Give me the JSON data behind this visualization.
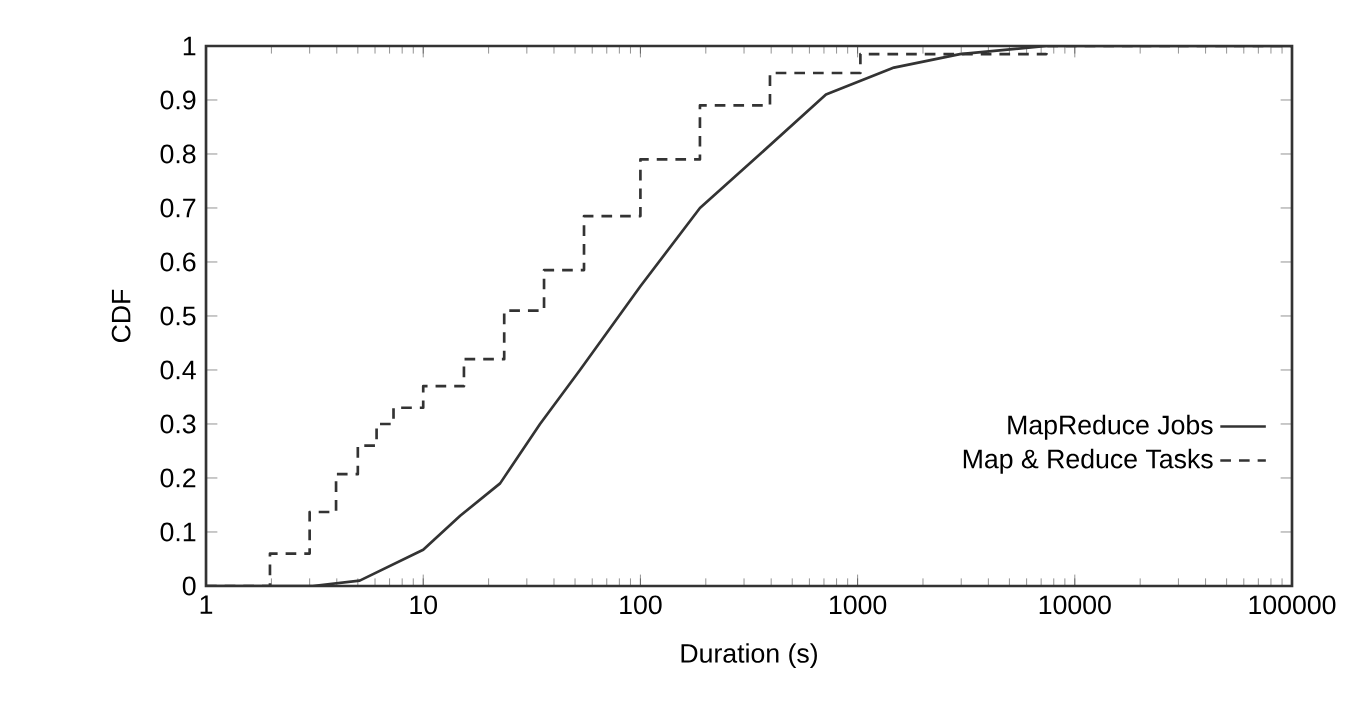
{
  "chart_data": {
    "type": "line",
    "xlabel": "Duration (s)",
    "ylabel": "CDF",
    "log": "x",
    "xlim": [
      1,
      100000
    ],
    "ylim": [
      0,
      1
    ],
    "xticks": [
      1,
      10,
      100,
      1000,
      10000,
      100000
    ],
    "yticks": [
      0,
      0.1,
      0.2,
      0.3,
      0.4,
      0.5,
      0.6,
      0.7,
      0.8,
      0.9,
      1
    ],
    "grid": false,
    "legend": "bottom right",
    "marker": "none",
    "series": [
      {
        "name": "MapReduce Jobs",
        "line_style": "solid",
        "color": "#333333",
        "x": [
          1,
          3.1,
          5.1,
          10,
          14.8,
          22.6,
          34.5,
          52.7,
          100,
          188,
          356,
          715,
          1470,
          2960,
          7400,
          100000
        ],
        "values": [
          0,
          0,
          0.01,
          0.067,
          0.13,
          0.19,
          0.3,
          0.4,
          0.555,
          0.7,
          0.8,
          0.91,
          0.96,
          0.985,
          1,
          1
        ]
      },
      {
        "name": "Map & Reduce Tasks",
        "type": "step",
        "line_style": "dashed",
        "color": "#333333",
        "x": [
          1,
          1.97,
          3.0,
          3.97,
          5.0,
          6.1,
          7.3,
          10,
          15.4,
          23.6,
          36,
          55,
          100,
          188,
          395,
          1030,
          7400,
          100000
        ],
        "values": [
          0,
          0.06,
          0.137,
          0.207,
          0.26,
          0.3,
          0.33,
          0.37,
          0.42,
          0.51,
          0.585,
          0.685,
          0.79,
          0.89,
          0.95,
          0.985,
          1,
          1
        ]
      }
    ]
  }
}
